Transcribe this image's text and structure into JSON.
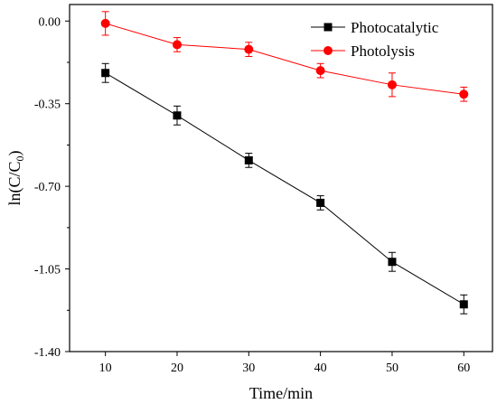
{
  "chart_data": {
    "type": "line",
    "x": [
      10,
      20,
      30,
      40,
      50,
      60
    ],
    "xlabel": "Time/min",
    "ylabel": "ln(C/C0)",
    "ylabel_main": "ln(C/C",
    "ylabel_sub": "0",
    "ylabel_close": ")",
    "xlim": [
      5,
      64
    ],
    "ylim": [
      -1.4,
      0.07
    ],
    "xticks": [
      10,
      20,
      30,
      40,
      50,
      60
    ],
    "xtick_labels": [
      "10",
      "20",
      "30",
      "40",
      "50",
      "60"
    ],
    "yticks": [
      0.0,
      -0.35,
      -0.7,
      -1.05,
      -1.4
    ],
    "ytick_labels": [
      "0.00",
      "-0.35",
      "-0.70",
      "-1.05",
      "-1.40"
    ],
    "grid": false,
    "legend_position": "top-right",
    "series": [
      {
        "name": "Photocatalytic",
        "color": "#000000",
        "marker": "square",
        "values": [
          -0.22,
          -0.4,
          -0.59,
          -0.77,
          -1.02,
          -1.2
        ],
        "errors": [
          0.04,
          0.04,
          0.03,
          0.03,
          0.04,
          0.04
        ]
      },
      {
        "name": "Photolysis",
        "color": "#ff0000",
        "marker": "circle",
        "values": [
          -0.01,
          -0.1,
          -0.12,
          -0.21,
          -0.27,
          -0.31
        ],
        "errors": [
          0.05,
          0.03,
          0.03,
          0.03,
          0.05,
          0.03
        ]
      }
    ]
  }
}
